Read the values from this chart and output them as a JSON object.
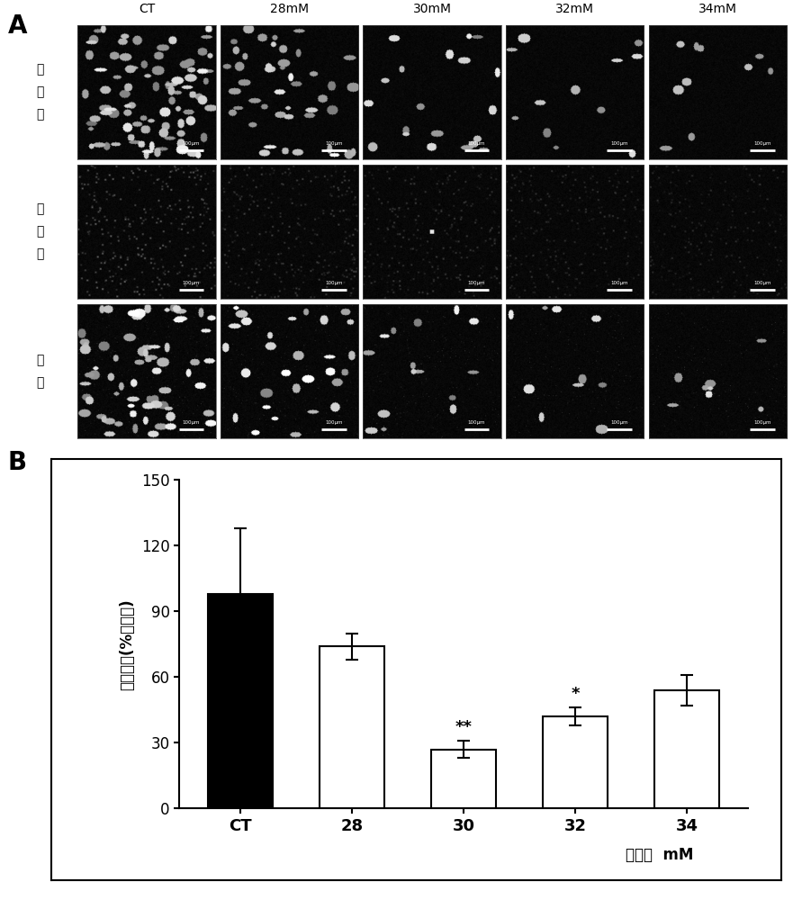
{
  "panel_A_label": "A",
  "panel_B_label": "B",
  "col_labels": [
    "CT",
    "28mM",
    "30mM",
    "32mM",
    "34mM"
  ],
  "row_labels": [
    "细胞数",
    "细核数",
    "合并"
  ],
  "bar_categories": [
    "CT",
    "28",
    "30",
    "32",
    "34"
  ],
  "bar_values": [
    98,
    74,
    27,
    42,
    54
  ],
  "bar_errors": [
    30,
    6,
    4,
    4,
    7
  ],
  "bar_colors": [
    "#000000",
    "#ffffff",
    "#ffffff",
    "#ffffff",
    "#ffffff"
  ],
  "bar_edge_colors": [
    "#000000",
    "#000000",
    "#000000",
    "#000000",
    "#000000"
  ],
  "ylabel": "细胞增殖(%对照组)",
  "xlabel_unit": "单位：  mM",
  "ylim": [
    0,
    150
  ],
  "yticks": [
    0,
    30,
    60,
    90,
    120,
    150
  ],
  "significance": [
    "",
    "",
    "**",
    "*",
    ""
  ],
  "scale_bar_text": "100μm"
}
